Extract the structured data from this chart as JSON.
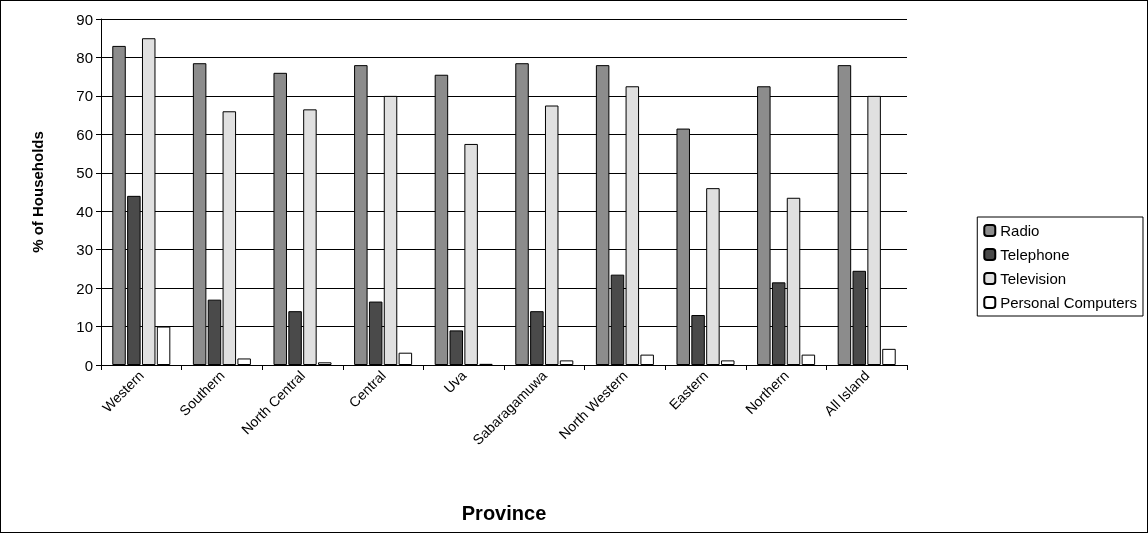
{
  "chart_data": {
    "type": "bar",
    "xlabel": "Province",
    "ylabel": "% of Households",
    "categories": [
      "Western",
      "Southern",
      "North Central",
      "Central",
      "Uva",
      "Sabaragamuwa",
      "North Western",
      "Eastern",
      "Northern",
      "All Island"
    ],
    "series": [
      {
        "name": "Radio",
        "color": "#8c8c8c",
        "values": [
          83,
          78.5,
          76,
          78,
          75.5,
          78.5,
          78,
          61.5,
          72.5,
          78
        ]
      },
      {
        "name": "Telephone",
        "color": "#4a4a4a",
        "values": [
          44,
          17,
          14,
          16.5,
          9,
          14,
          23.5,
          13,
          21.5,
          24.5
        ]
      },
      {
        "name": "Television",
        "color": "#e0e0e0",
        "values": [
          85,
          66,
          66.5,
          70,
          57.5,
          67.5,
          72.5,
          46,
          43.5,
          70
        ]
      },
      {
        "name": "Personal Computers",
        "color": "#ffffff",
        "values": [
          10,
          1.7,
          0.7,
          3.2,
          0.3,
          1.2,
          2.7,
          1.2,
          2.7,
          4.2
        ]
      }
    ],
    "ylim": [
      0,
      90
    ],
    "yticks": [
      0,
      10,
      20,
      30,
      40,
      50,
      60,
      70,
      80,
      90
    ],
    "grid": "y",
    "legend": "right"
  }
}
